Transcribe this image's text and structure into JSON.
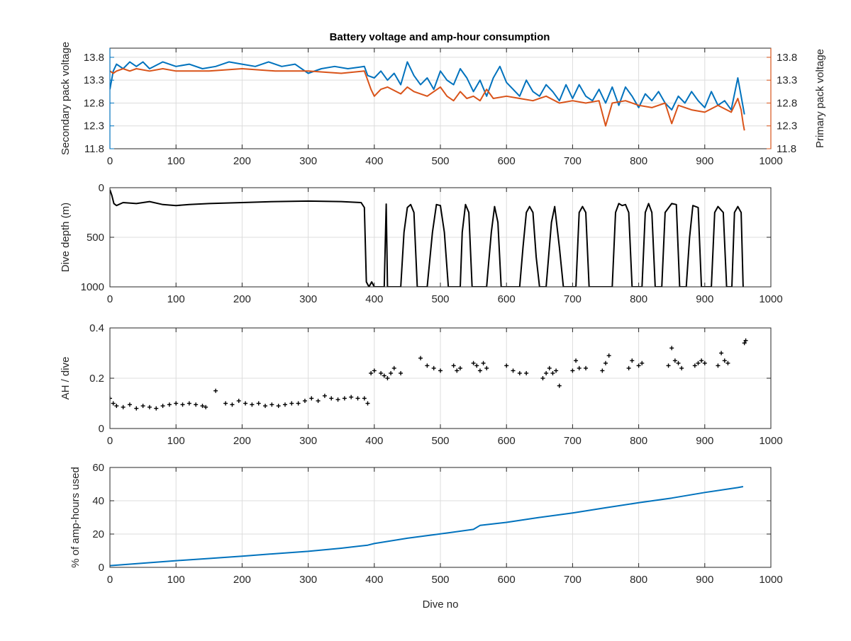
{
  "figure": {
    "title": "Battery voltage and amp-hour consumption",
    "colors": {
      "blue": "#0072BD",
      "orange": "#D95319",
      "black": "#000000",
      "grid": "#dcdcdc",
      "axis": "#262626"
    }
  },
  "chart_data": [
    {
      "type": "line",
      "title": "Battery voltage and amp-hour consumption",
      "xlabel": "",
      "ylabel_left": "Secondary pack voltage",
      "ylabel_right": "Primary pack voltage",
      "xlim": [
        0,
        1000
      ],
      "ylim": [
        11.8,
        14.0
      ],
      "xticks": [
        0,
        100,
        200,
        300,
        400,
        500,
        600,
        700,
        800,
        900,
        1000
      ],
      "yticks": [
        11.8,
        12.3,
        12.8,
        13.3,
        13.8
      ],
      "ytick_labels": [
        "11.8",
        "12.3",
        "12.8",
        "13.3",
        "13.8"
      ],
      "grid": true,
      "series": [
        {
          "axis": "left",
          "color": "#0072BD",
          "x": [
            0,
            5,
            10,
            20,
            30,
            40,
            50,
            60,
            80,
            100,
            120,
            140,
            160,
            180,
            200,
            220,
            240,
            260,
            280,
            300,
            320,
            340,
            360,
            385,
            390,
            400,
            410,
            420,
            430,
            440,
            450,
            460,
            470,
            480,
            490,
            500,
            510,
            520,
            530,
            540,
            550,
            560,
            570,
            580,
            590,
            600,
            610,
            620,
            630,
            640,
            650,
            660,
            670,
            680,
            690,
            700,
            710,
            720,
            730,
            740,
            750,
            760,
            770,
            780,
            790,
            800,
            810,
            820,
            830,
            840,
            850,
            860,
            870,
            880,
            890,
            900,
            910,
            920,
            930,
            940,
            950,
            955,
            960
          ],
          "y": [
            13.1,
            13.5,
            13.65,
            13.55,
            13.7,
            13.6,
            13.7,
            13.55,
            13.7,
            13.6,
            13.65,
            13.55,
            13.6,
            13.7,
            13.65,
            13.6,
            13.7,
            13.6,
            13.65,
            13.45,
            13.55,
            13.6,
            13.55,
            13.6,
            13.4,
            13.35,
            13.5,
            13.3,
            13.45,
            13.2,
            13.7,
            13.4,
            13.2,
            13.35,
            13.1,
            13.5,
            13.3,
            13.2,
            13.55,
            13.35,
            13.05,
            13.3,
            12.95,
            13.35,
            13.6,
            13.25,
            13.1,
            12.95,
            13.3,
            13.05,
            12.95,
            13.2,
            13.05,
            12.85,
            13.2,
            12.9,
            13.2,
            12.95,
            12.85,
            13.1,
            12.8,
            13.15,
            12.75,
            13.15,
            12.95,
            12.7,
            13.0,
            12.85,
            13.05,
            12.8,
            12.65,
            12.95,
            12.8,
            13.05,
            12.85,
            12.7,
            13.05,
            12.75,
            12.85,
            12.65,
            13.35,
            12.95,
            12.55
          ]
        },
        {
          "axis": "right",
          "color": "#D95319",
          "x": [
            0,
            5,
            10,
            20,
            30,
            40,
            60,
            80,
            100,
            150,
            200,
            250,
            300,
            350,
            385,
            390,
            395,
            400,
            410,
            420,
            440,
            450,
            460,
            480,
            500,
            510,
            520,
            530,
            540,
            550,
            560,
            570,
            580,
            600,
            620,
            640,
            660,
            680,
            700,
            720,
            740,
            750,
            760,
            780,
            800,
            820,
            840,
            850,
            860,
            880,
            900,
            920,
            940,
            950,
            955,
            958,
            960
          ],
          "y": [
            13.5,
            13.45,
            13.5,
            13.55,
            13.5,
            13.55,
            13.5,
            13.55,
            13.5,
            13.5,
            13.55,
            13.5,
            13.5,
            13.45,
            13.5,
            13.3,
            13.1,
            12.95,
            13.1,
            13.15,
            13.0,
            13.15,
            13.05,
            12.95,
            13.15,
            12.95,
            12.85,
            13.05,
            12.9,
            12.95,
            12.85,
            13.1,
            12.9,
            12.95,
            12.9,
            12.85,
            12.95,
            12.8,
            12.85,
            12.8,
            12.85,
            12.3,
            12.8,
            12.85,
            12.75,
            12.7,
            12.8,
            12.35,
            12.75,
            12.65,
            12.6,
            12.75,
            12.6,
            12.9,
            12.65,
            12.35,
            12.2
          ]
        }
      ]
    },
    {
      "type": "line",
      "title": "",
      "xlabel": "",
      "ylabel": "Dive depth (m)",
      "xlim": [
        0,
        1000
      ],
      "ylim": [
        0,
        1000
      ],
      "y_reversed": true,
      "xticks": [
        0,
        100,
        200,
        300,
        400,
        500,
        600,
        700,
        800,
        900,
        1000
      ],
      "yticks": [
        0,
        500,
        1000
      ],
      "ytick_labels": [
        "0",
        "500",
        "1000"
      ],
      "grid": true,
      "series": [
        {
          "color": "#000000",
          "x": [
            0,
            3,
            6,
            10,
            20,
            40,
            60,
            80,
            100,
            120,
            150,
            200,
            250,
            300,
            350,
            380,
            385,
            388,
            392,
            396,
            400,
            415,
            418,
            420,
            422,
            430,
            440,
            445,
            450,
            455,
            460,
            465,
            470,
            480,
            488,
            494,
            500,
            506,
            512,
            520,
            530,
            533,
            538,
            543,
            548,
            553,
            560,
            570,
            577,
            582,
            587,
            592,
            600,
            610,
            620,
            625,
            630,
            635,
            640,
            645,
            650,
            655,
            660,
            668,
            673,
            680,
            686,
            690,
            700,
            705,
            710,
            715,
            720,
            725,
            730,
            740,
            745,
            750,
            760,
            765,
            770,
            775,
            780,
            785,
            790,
            800,
            805,
            810,
            815,
            820,
            825,
            830,
            835,
            840,
            850,
            857,
            862,
            867,
            872,
            877,
            882,
            890,
            895,
            900,
            905,
            910,
            915,
            920,
            928,
            933,
            937,
            941,
            945,
            950,
            955,
            958
          ],
          "y": [
            20,
            80,
            160,
            180,
            150,
            160,
            140,
            170,
            180,
            170,
            160,
            150,
            140,
            135,
            140,
            150,
            200,
            950,
            1000,
            950,
            1000,
            1000,
            165,
            1000,
            1000,
            1000,
            1000,
            450,
            200,
            170,
            250,
            1000,
            1000,
            1000,
            450,
            170,
            180,
            450,
            1000,
            1000,
            1000,
            450,
            170,
            250,
            1000,
            1000,
            1000,
            1000,
            450,
            190,
            350,
            1000,
            1000,
            1000,
            1000,
            600,
            250,
            190,
            250,
            700,
            1000,
            1000,
            1000,
            350,
            190,
            600,
            1000,
            1000,
            1000,
            1000,
            250,
            190,
            250,
            1000,
            1000,
            1000,
            1000,
            1000,
            1000,
            250,
            160,
            180,
            170,
            250,
            1000,
            1000,
            1000,
            250,
            160,
            250,
            1000,
            1000,
            1000,
            250,
            160,
            170,
            1000,
            1000,
            1000,
            500,
            180,
            200,
            1000,
            1000,
            1000,
            1000,
            250,
            190,
            250,
            1000,
            1000,
            1000,
            250,
            190,
            250,
            1000
          ]
        }
      ]
    },
    {
      "type": "scatter",
      "title": "",
      "xlabel": "",
      "ylabel": "AH / dive",
      "xlim": [
        0,
        1000
      ],
      "ylim": [
        0,
        0.4
      ],
      "xticks": [
        0,
        100,
        200,
        300,
        400,
        500,
        600,
        700,
        800,
        900,
        1000
      ],
      "yticks": [
        0,
        0.2,
        0.4
      ],
      "ytick_labels": [
        "0",
        "0.2",
        "0.4"
      ],
      "grid": true,
      "series": [
        {
          "color": "#000000",
          "marker": "+",
          "x": [
            0,
            5,
            10,
            20,
            30,
            40,
            50,
            60,
            70,
            80,
            90,
            100,
            110,
            120,
            130,
            140,
            145,
            160,
            175,
            185,
            195,
            205,
            215,
            225,
            235,
            245,
            255,
            265,
            275,
            285,
            295,
            305,
            315,
            325,
            335,
            345,
            355,
            365,
            375,
            385,
            390,
            395,
            400,
            410,
            415,
            420,
            425,
            430,
            440,
            470,
            480,
            490,
            500,
            520,
            525,
            530,
            550,
            555,
            560,
            565,
            570,
            600,
            610,
            620,
            630,
            655,
            660,
            665,
            670,
            675,
            680,
            700,
            705,
            710,
            720,
            745,
            750,
            755,
            785,
            790,
            800,
            805,
            845,
            850,
            855,
            860,
            865,
            885,
            890,
            895,
            900,
            920,
            925,
            930,
            935,
            960,
            962
          ],
          "y": [
            0.12,
            0.1,
            0.09,
            0.085,
            0.095,
            0.08,
            0.09,
            0.085,
            0.08,
            0.09,
            0.095,
            0.1,
            0.095,
            0.1,
            0.095,
            0.09,
            0.085,
            0.15,
            0.1,
            0.095,
            0.11,
            0.1,
            0.095,
            0.1,
            0.09,
            0.095,
            0.09,
            0.095,
            0.1,
            0.1,
            0.11,
            0.12,
            0.11,
            0.13,
            0.12,
            0.115,
            0.12,
            0.125,
            0.12,
            0.12,
            0.1,
            0.22,
            0.23,
            0.22,
            0.21,
            0.2,
            0.22,
            0.24,
            0.22,
            0.28,
            0.25,
            0.24,
            0.23,
            0.25,
            0.23,
            0.24,
            0.26,
            0.25,
            0.23,
            0.26,
            0.24,
            0.25,
            0.23,
            0.22,
            0.22,
            0.2,
            0.22,
            0.24,
            0.22,
            0.23,
            0.17,
            0.23,
            0.27,
            0.24,
            0.24,
            0.23,
            0.26,
            0.29,
            0.24,
            0.27,
            0.25,
            0.26,
            0.25,
            0.32,
            0.27,
            0.26,
            0.24,
            0.25,
            0.26,
            0.27,
            0.26,
            0.25,
            0.3,
            0.27,
            0.26,
            0.34,
            0.35
          ]
        }
      ]
    },
    {
      "type": "line",
      "title": "",
      "xlabel": "Dive no",
      "ylabel": "% of amp-hours used",
      "xlim": [
        0,
        1000
      ],
      "ylim": [
        0,
        60
      ],
      "xticks": [
        0,
        100,
        200,
        300,
        400,
        500,
        600,
        700,
        800,
        900,
        1000
      ],
      "yticks": [
        0,
        20,
        40,
        60
      ],
      "ytick_labels": [
        "0",
        "20",
        "40",
        "60"
      ],
      "grid": true,
      "series": [
        {
          "color": "#0072BD",
          "x": [
            0,
            50,
            100,
            150,
            200,
            250,
            300,
            350,
            390,
            400,
            450,
            500,
            550,
            560,
            600,
            650,
            700,
            750,
            800,
            850,
            900,
            950,
            958
          ],
          "y": [
            1,
            2.5,
            4,
            5.3,
            6.7,
            8.2,
            9.6,
            11.5,
            13.3,
            14.3,
            17.5,
            20.1,
            22.8,
            25.2,
            27,
            30,
            32.7,
            35.8,
            38.8,
            41.6,
            45,
            47.9,
            48.5
          ]
        }
      ]
    }
  ]
}
